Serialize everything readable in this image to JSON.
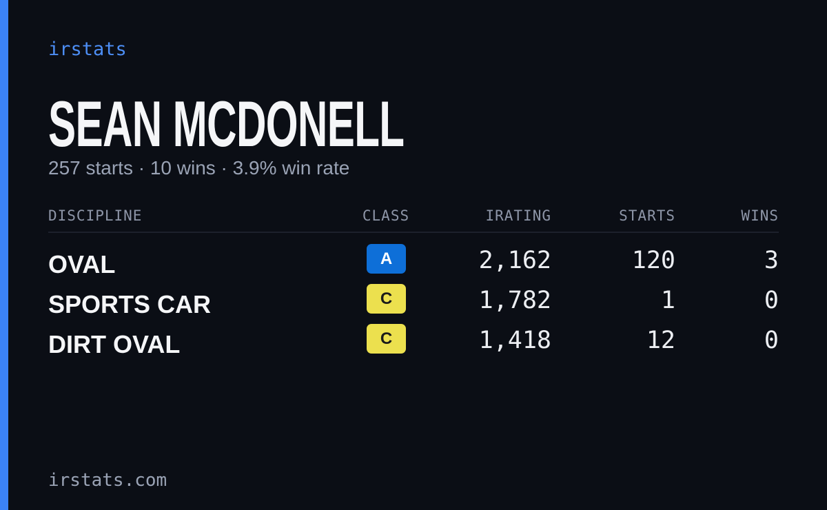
{
  "brand": "irstats",
  "driver": {
    "name": "SEAN MCDONELL",
    "summary": "257 starts · 10 wins · 3.9% win rate"
  },
  "table": {
    "headers": [
      "DISCIPLINE",
      "CLASS",
      "IRATING",
      "STARTS",
      "WINS"
    ],
    "rows": [
      {
        "discipline": "OVAL",
        "class": "A",
        "class_color": "#0e6fd8",
        "irating": "2,162",
        "starts": "120",
        "wins": "3"
      },
      {
        "discipline": "SPORTS CAR",
        "class": "C",
        "class_color": "#ece04e",
        "irating": "1,782",
        "starts": "1",
        "wins": "0"
      },
      {
        "discipline": "DIRT OVAL",
        "class": "C",
        "class_color": "#ece04e",
        "irating": "1,418",
        "starts": "12",
        "wins": "0"
      }
    ]
  },
  "footer": "irstats.com"
}
